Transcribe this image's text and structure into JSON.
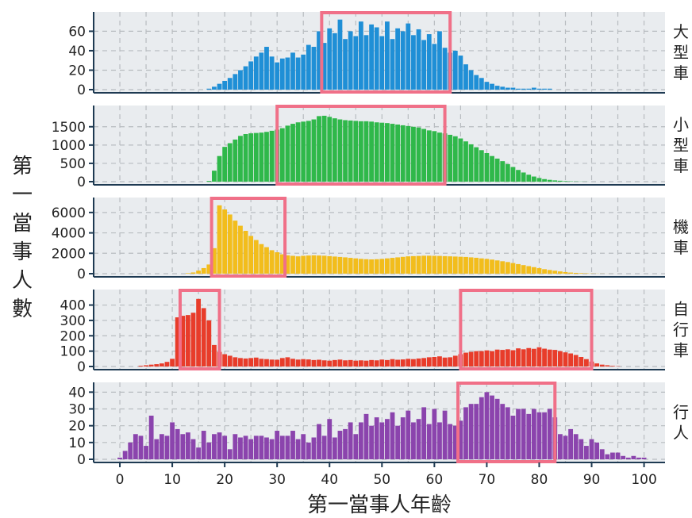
{
  "chart_data": {
    "type": "bar",
    "x_label": "第一當事人年齡",
    "y_label": "第一當事人數",
    "x_ticks": [
      0,
      10,
      20,
      30,
      40,
      50,
      60,
      70,
      80,
      90,
      100
    ],
    "colors": {
      "panel_bg": "#e9ecef",
      "grid": "#b8bcc0",
      "axis": "#1e3a52",
      "highlight": "#f07088"
    },
    "panels": [
      {
        "label": "大型車",
        "color": "#1f8fd6",
        "ylim": [
          0,
          75
        ],
        "y_ticks": [
          0,
          20,
          40,
          60
        ],
        "x": [
          17,
          18,
          19,
          20,
          21,
          22,
          23,
          24,
          25,
          26,
          27,
          28,
          29,
          30,
          31,
          32,
          33,
          34,
          35,
          36,
          37,
          38,
          39,
          40,
          41,
          42,
          43,
          44,
          45,
          46,
          47,
          48,
          49,
          50,
          51,
          52,
          53,
          54,
          55,
          56,
          57,
          58,
          59,
          60,
          61,
          62,
          63,
          64,
          65,
          66,
          67,
          68,
          69,
          70,
          71,
          72,
          73,
          74,
          75,
          76,
          77,
          78,
          79,
          80,
          81,
          82
        ],
        "values": [
          1,
          3,
          6,
          9,
          12,
          16,
          20,
          24,
          29,
          34,
          38,
          44,
          34,
          28,
          32,
          33,
          38,
          33,
          36,
          46,
          44,
          60,
          48,
          63,
          58,
          72,
          52,
          60,
          55,
          70,
          56,
          67,
          64,
          55,
          70,
          52,
          63,
          60,
          68,
          56,
          62,
          51,
          57,
          47,
          60,
          43,
          38,
          40,
          35,
          26,
          20,
          15,
          12,
          8,
          6,
          4,
          3,
          2,
          2,
          1,
          1,
          1,
          2,
          1,
          1,
          1
        ],
        "highlights": [
          [
            38.5,
            63
          ]
        ]
      },
      {
        "label": "小型車",
        "color": "#2fb84a",
        "ylim": [
          0,
          1950
        ],
        "y_ticks": [
          0,
          500,
          1000,
          1500
        ],
        "x": [
          17,
          18,
          19,
          20,
          21,
          22,
          23,
          24,
          25,
          26,
          27,
          28,
          29,
          30,
          31,
          32,
          33,
          34,
          35,
          36,
          37,
          38,
          39,
          40,
          41,
          42,
          43,
          44,
          45,
          46,
          47,
          48,
          49,
          50,
          51,
          52,
          53,
          54,
          55,
          56,
          57,
          58,
          59,
          60,
          61,
          62,
          63,
          64,
          65,
          66,
          67,
          68,
          69,
          70,
          71,
          72,
          73,
          74,
          75,
          76,
          77,
          78,
          79,
          80,
          81,
          82,
          83,
          84,
          85,
          86,
          87,
          88,
          89
        ],
        "values": [
          20,
          300,
          700,
          950,
          1050,
          1150,
          1250,
          1300,
          1320,
          1330,
          1340,
          1360,
          1390,
          1420,
          1460,
          1530,
          1580,
          1620,
          1640,
          1660,
          1700,
          1790,
          1800,
          1770,
          1730,
          1700,
          1680,
          1670,
          1660,
          1650,
          1650,
          1640,
          1620,
          1610,
          1600,
          1580,
          1560,
          1540,
          1520,
          1500,
          1480,
          1440,
          1400,
          1380,
          1340,
          1320,
          1280,
          1240,
          1180,
          1100,
          1020,
          940,
          860,
          780,
          700,
          630,
          560,
          480,
          400,
          320,
          250,
          190,
          140,
          100,
          70,
          50,
          35,
          25,
          15,
          10,
          6,
          4,
          2
        ],
        "highlights": [
          [
            30,
            62
          ]
        ]
      },
      {
        "label": "機車",
        "color": "#f2bd1c",
        "ylim": [
          0,
          7000
        ],
        "y_ticks": [
          0,
          2000,
          4000,
          6000
        ],
        "x": [
          13,
          14,
          15,
          16,
          17,
          18,
          19,
          20,
          21,
          22,
          23,
          24,
          25,
          26,
          27,
          28,
          29,
          30,
          31,
          32,
          33,
          34,
          35,
          36,
          37,
          38,
          39,
          40,
          41,
          42,
          43,
          44,
          45,
          46,
          47,
          48,
          49,
          50,
          51,
          52,
          53,
          54,
          55,
          56,
          57,
          58,
          59,
          60,
          61,
          62,
          63,
          64,
          65,
          66,
          67,
          68,
          69,
          70,
          71,
          72,
          73,
          74,
          75,
          76,
          77,
          78,
          79,
          80,
          81,
          82,
          83,
          84,
          85,
          86,
          87,
          88,
          89,
          90,
          91,
          92,
          93,
          94,
          95
        ],
        "values": [
          50,
          120,
          300,
          550,
          900,
          2500,
          6700,
          6300,
          5800,
          5200,
          4700,
          4200,
          3700,
          3300,
          2900,
          2600,
          2300,
          2100,
          1900,
          1800,
          1750,
          1700,
          1750,
          1780,
          1800,
          1780,
          1760,
          1720,
          1680,
          1640,
          1600,
          1550,
          1500,
          1450,
          1420,
          1400,
          1420,
          1450,
          1500,
          1550,
          1600,
          1650,
          1700,
          1720,
          1740,
          1760,
          1760,
          1750,
          1740,
          1720,
          1700,
          1680,
          1660,
          1640,
          1600,
          1560,
          1500,
          1450,
          1380,
          1300,
          1220,
          1140,
          1040,
          940,
          840,
          740,
          640,
          540,
          440,
          360,
          290,
          220,
          160,
          110,
          80,
          55,
          35,
          20,
          12,
          8,
          5,
          3,
          2
        ],
        "highlights": [
          [
            17.5,
            31.5
          ]
        ]
      },
      {
        "label": "自行車",
        "color": "#e83c2a",
        "ylim": [
          0,
          470
        ],
        "y_ticks": [
          0,
          100,
          200,
          300,
          400
        ],
        "x": [
          4,
          5,
          6,
          7,
          8,
          9,
          10,
          11,
          12,
          13,
          14,
          15,
          16,
          17,
          18,
          19,
          20,
          21,
          22,
          23,
          24,
          25,
          26,
          27,
          28,
          29,
          30,
          31,
          32,
          33,
          34,
          35,
          36,
          37,
          38,
          39,
          40,
          41,
          42,
          43,
          44,
          45,
          46,
          47,
          48,
          49,
          50,
          51,
          52,
          53,
          54,
          55,
          56,
          57,
          58,
          59,
          60,
          61,
          62,
          63,
          64,
          65,
          66,
          67,
          68,
          69,
          70,
          71,
          72,
          73,
          74,
          75,
          76,
          77,
          78,
          79,
          80,
          81,
          82,
          83,
          84,
          85,
          86,
          87,
          88,
          89,
          90,
          91,
          92,
          93,
          94,
          95
        ],
        "values": [
          5,
          8,
          12,
          15,
          20,
          30,
          50,
          320,
          330,
          335,
          350,
          440,
          380,
          300,
          140,
          95,
          80,
          70,
          60,
          55,
          52,
          55,
          58,
          50,
          48,
          45,
          44,
          55,
          60,
          50,
          45,
          48,
          46,
          42,
          44,
          40,
          38,
          42,
          45,
          40,
          42,
          38,
          40,
          38,
          42,
          40,
          45,
          42,
          48,
          44,
          46,
          50,
          48,
          52,
          55,
          60,
          62,
          66,
          58,
          60,
          70,
          80,
          90,
          95,
          100,
          100,
          105,
          100,
          110,
          108,
          112,
          106,
          118,
          112,
          120,
          115,
          125,
          116,
          110,
          108,
          100,
          92,
          85,
          75,
          62,
          48,
          32,
          20,
          12,
          8,
          4,
          2
        ],
        "highlights": [
          [
            11.5,
            19
          ],
          [
            65,
            90
          ]
        ]
      },
      {
        "label": "行人",
        "color": "#8b44ad",
        "ylim": [
          0,
          43
        ],
        "y_ticks": [
          0,
          10,
          20,
          30,
          40
        ],
        "x": [
          0,
          1,
          2,
          3,
          4,
          5,
          6,
          7,
          8,
          9,
          10,
          11,
          12,
          13,
          14,
          15,
          16,
          17,
          18,
          19,
          20,
          21,
          22,
          23,
          24,
          25,
          26,
          27,
          28,
          29,
          30,
          31,
          32,
          33,
          34,
          35,
          36,
          37,
          38,
          39,
          40,
          41,
          42,
          43,
          44,
          45,
          46,
          47,
          48,
          49,
          50,
          51,
          52,
          53,
          54,
          55,
          56,
          57,
          58,
          59,
          60,
          61,
          62,
          63,
          64,
          65,
          66,
          67,
          68,
          69,
          70,
          71,
          72,
          73,
          74,
          75,
          76,
          77,
          78,
          79,
          80,
          81,
          82,
          83,
          84,
          85,
          86,
          87,
          88,
          89,
          90,
          91,
          92,
          93,
          94,
          95,
          96,
          97,
          98,
          99,
          100
        ],
        "values": [
          1,
          5,
          10,
          15,
          14,
          8,
          26,
          12,
          15,
          14,
          22,
          18,
          15,
          16,
          12,
          7,
          17,
          10,
          15,
          16,
          14,
          6,
          15,
          13,
          14,
          12,
          14,
          14,
          13,
          12,
          17,
          14,
          14,
          17,
          12,
          15,
          10,
          13,
          21,
          14,
          24,
          13,
          17,
          18,
          22,
          15,
          22,
          27,
          20,
          25,
          22,
          24,
          28,
          20,
          25,
          29,
          22,
          24,
          31,
          21,
          30,
          22,
          29,
          21,
          20,
          23,
          31,
          33,
          33,
          37,
          40,
          38,
          36,
          33,
          31,
          26,
          30,
          30,
          27,
          30,
          28,
          28,
          30,
          25,
          15,
          14,
          18,
          15,
          12,
          8,
          12,
          10,
          6,
          3,
          4,
          4,
          2,
          1,
          2,
          1,
          1
        ],
        "highlights": [
          [
            64.5,
            83
          ]
        ]
      }
    ]
  }
}
